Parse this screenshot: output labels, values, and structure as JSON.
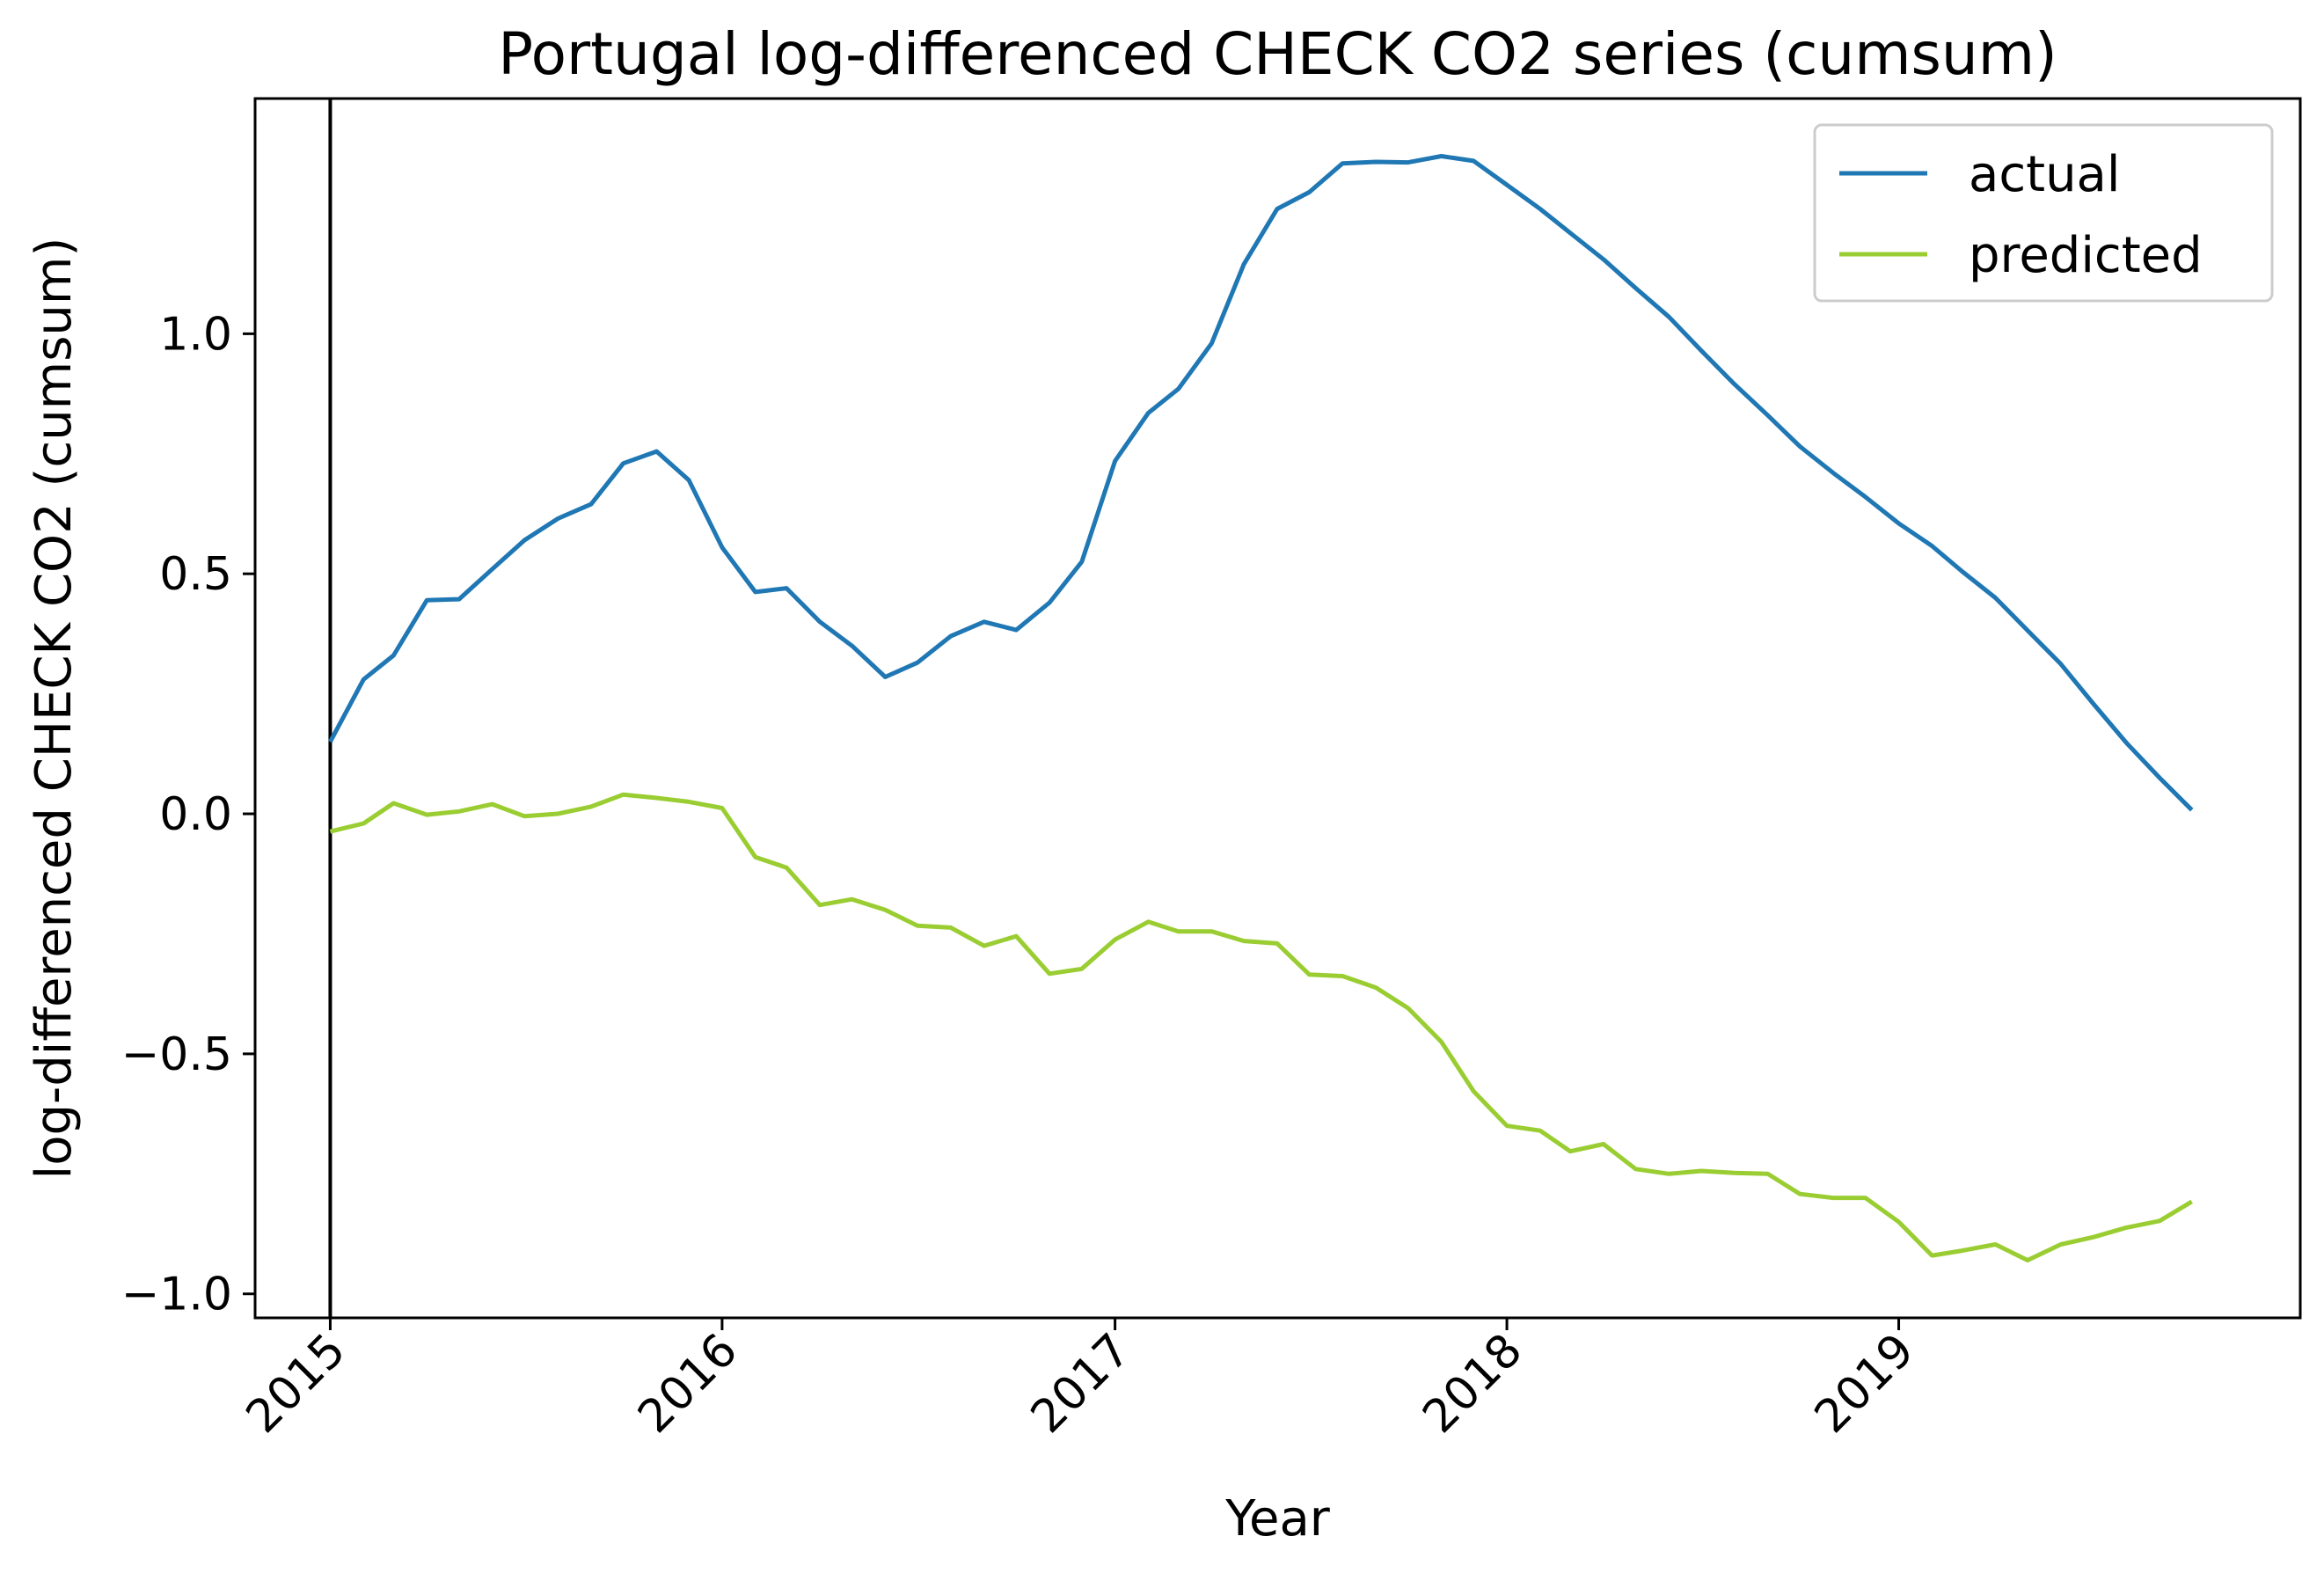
{
  "chart_data": {
    "type": "line",
    "title": "Portugal log-differenced CHECK CO2 series (cumsum)",
    "xlabel": "Year",
    "ylabel": "log-differenced CHECK CO2 (cumsum)",
    "x_start": "2015-01",
    "x_frequency": "monthly",
    "xlim": [
      "2014-10-23",
      "2020-01-10"
    ],
    "ylim": [
      -1.05,
      1.49
    ],
    "xticks": [
      {
        "label": "2015",
        "x": "2015-01-01"
      },
      {
        "label": "2016",
        "x": "2016-01-01"
      },
      {
        "label": "2017",
        "x": "2017-01-01"
      },
      {
        "label": "2018",
        "x": "2018-01-01"
      },
      {
        "label": "2019",
        "x": "2019-01-01"
      }
    ],
    "yticks": [
      {
        "label": "1.0",
        "value": 1.0
      },
      {
        "label": "0.5",
        "value": 0.5
      },
      {
        "label": "0.0",
        "value": 0.0
      },
      {
        "label": "−0.5",
        "value": -0.5
      },
      {
        "label": "−1.0",
        "value": -1.0
      }
    ],
    "vline": {
      "x": "2015-01-01",
      "color": "#000000"
    },
    "legend": {
      "position": "top-right"
    },
    "grid": false,
    "series": [
      {
        "name": "actual",
        "color": "#1f77b4",
        "values": [
          0.15,
          0.28,
          0.33,
          0.445,
          0.447,
          0.51,
          0.57,
          0.615,
          0.645,
          0.73,
          0.755,
          0.695,
          0.555,
          0.462,
          0.47,
          0.4,
          0.35,
          0.285,
          0.315,
          0.37,
          0.4,
          0.383,
          0.44,
          0.525,
          0.735,
          0.835,
          0.885,
          0.98,
          1.145,
          1.26,
          1.295,
          1.355,
          1.358,
          1.357,
          1.37,
          1.36,
          1.31,
          1.26,
          1.21,
          1.155,
          1.095,
          1.035,
          0.965,
          0.895,
          0.83,
          0.765,
          0.71,
          0.66,
          0.605,
          0.558,
          0.505,
          0.45,
          0.382,
          0.312,
          0.23,
          0.148,
          0.075,
          0.008
        ]
      },
      {
        "name": "predicted",
        "color": "#9acd32",
        "values": [
          -0.037,
          -0.02,
          0.022,
          -0.002,
          0.005,
          0.02,
          -0.005,
          0.0,
          0.015,
          0.04,
          0.033,
          0.025,
          0.012,
          -0.09,
          -0.112,
          -0.19,
          -0.178,
          -0.2,
          -0.233,
          -0.237,
          -0.275,
          -0.255,
          -0.333,
          -0.323,
          -0.262,
          -0.225,
          -0.245,
          -0.245,
          -0.265,
          -0.27,
          -0.335,
          -0.338,
          -0.362,
          -0.405,
          -0.475,
          -0.578,
          -0.65,
          -0.66,
          -0.703,
          -0.688,
          -0.74,
          -0.75,
          -0.744,
          -0.748,
          -0.75,
          -0.792,
          -0.8,
          -0.8,
          -0.85,
          -0.92,
          -0.91,
          -0.897,
          -0.93,
          -0.897,
          -0.882,
          -0.862,
          -0.848,
          -0.808
        ]
      }
    ]
  }
}
